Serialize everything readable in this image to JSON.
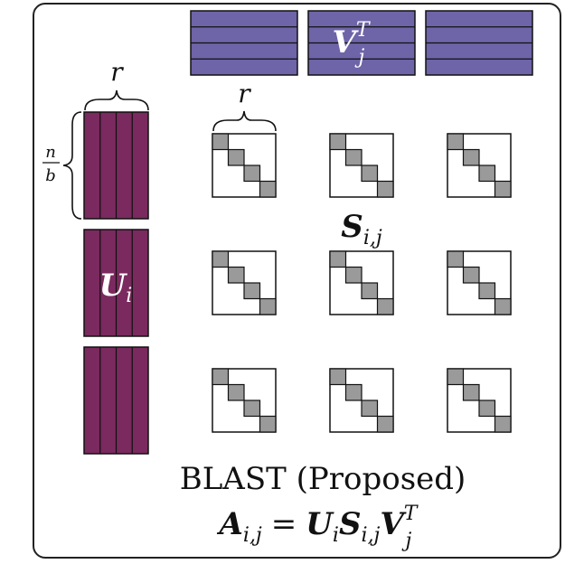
{
  "title": "BLAST (Proposed)",
  "equation": {
    "lhs": "A",
    "lhs_sub": "i,j",
    "eq": "=",
    "u": "U",
    "u_sub": "i",
    "s": "S",
    "s_sub": "i,j",
    "v": "V",
    "v_sub": "j",
    "v_sup": "T"
  },
  "labels": {
    "r_top": "r",
    "r_block": "r",
    "frac_num": "n",
    "frac_den": "b",
    "u_label": "U",
    "u_sub": "i",
    "v_label": "V",
    "v_sub": "j",
    "v_sup": "T",
    "s_label": "S",
    "s_sub": "i,j"
  },
  "colors": {
    "u_fill": "#7a2a5e",
    "v_fill": "#6e64a8",
    "diag_fill": "#9a9a9a",
    "stroke": "#111111"
  },
  "structure": {
    "u_blocks": 3,
    "u_columns_per_block": 4,
    "v_blocks": 3,
    "v_rows_per_block": 4,
    "s_grid_rows": 3,
    "s_grid_cols": 3,
    "diag_cells": 4
  }
}
